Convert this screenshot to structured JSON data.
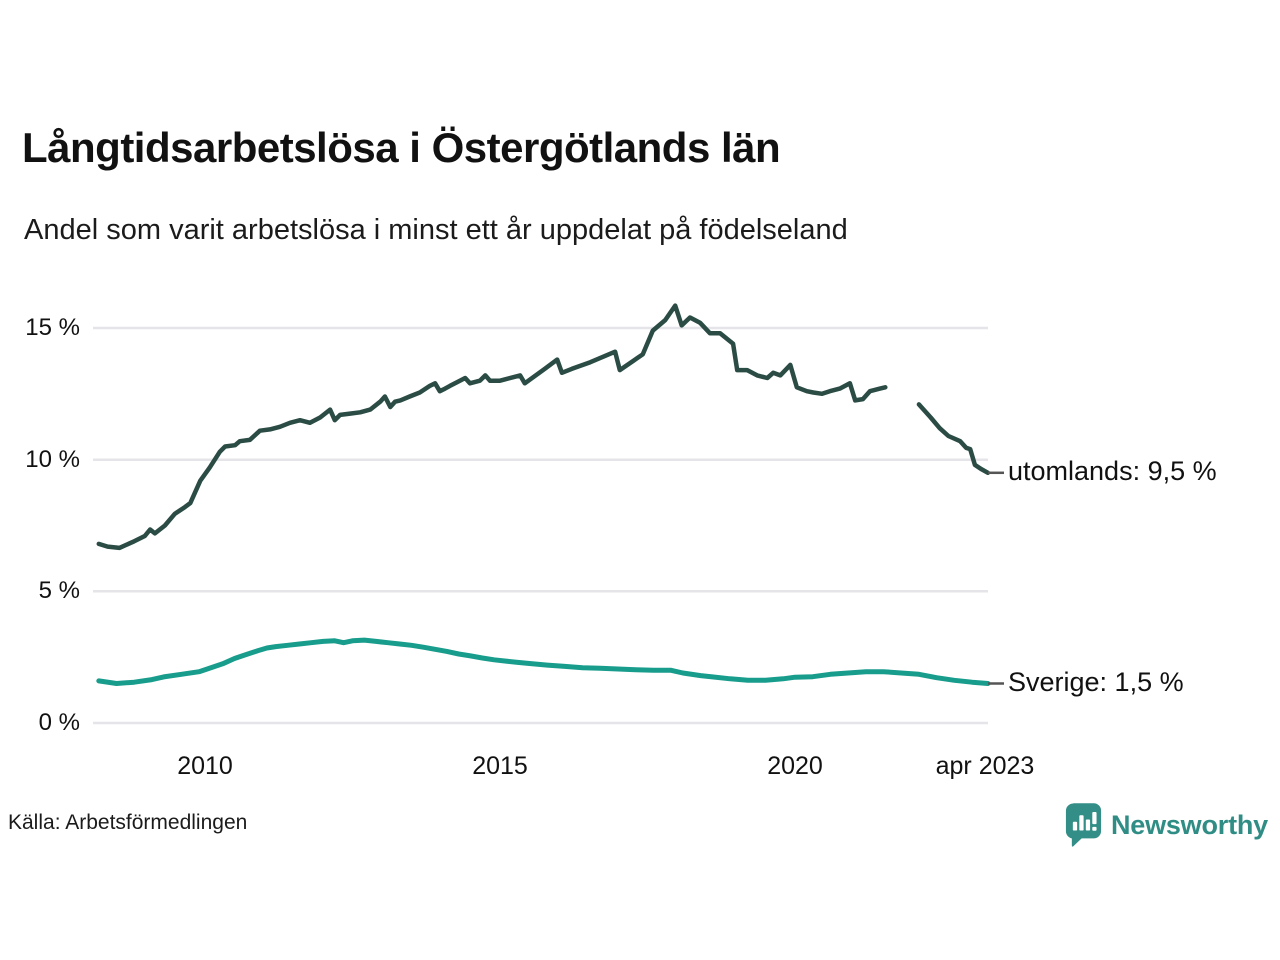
{
  "chart": {
    "title": "Långtidsarbetslösa i Östergötlands län",
    "subtitle": "Andel som varit arbetslösa i minst ett år uppdelat på födelseland",
    "source": "Källa: Arbetsförmedlingen",
    "brand": {
      "name": "Newsworthy",
      "color": "#2f8d86",
      "icon": "speech-bubble-bar-chart"
    }
  },
  "chart_data": {
    "type": "line",
    "title": "Långtidsarbetslösa i Östergötlands län",
    "subtitle": "Andel som varit arbetslösa i minst ett år uppdelat på födelseland",
    "xlabel": "",
    "ylabel": "",
    "x_unit": "decimal-year",
    "xlim": [
      2008.1,
      2023.35
    ],
    "ylim": [
      0,
      16
    ],
    "grid": "horizontal",
    "grid_color": "#e4e4e9",
    "axis_label_color": "#111111",
    "end_tick_color": "#555555",
    "legend_position": "right-end-labels",
    "y_ticks": [
      {
        "v": 0,
        "label": "0 %"
      },
      {
        "v": 5,
        "label": "5 %"
      },
      {
        "v": 10,
        "label": "10 %"
      },
      {
        "v": 15,
        "label": "15 %"
      }
    ],
    "x_ticks": [
      {
        "v": 2010,
        "label": "2010"
      },
      {
        "v": 2015,
        "label": "2015"
      },
      {
        "v": 2020,
        "label": "2020"
      },
      {
        "v": 2023.22,
        "label": "apr 2023"
      }
    ],
    "series": [
      {
        "name": "utomlands",
        "end_label": "utomlands: 9,5 %",
        "final_value": 9.5,
        "color": "#2b4c44",
        "width": 4.5,
        "segments": [
          [
            [
              2008.2,
              6.8
            ],
            [
              2008.35,
              6.7
            ],
            [
              2008.55,
              6.65
            ],
            [
              2008.8,
              6.9
            ],
            [
              2008.98,
              7.1
            ],
            [
              2009.07,
              7.35
            ],
            [
              2009.15,
              7.2
            ],
            [
              2009.32,
              7.5
            ],
            [
              2009.49,
              7.95
            ],
            [
              2009.66,
              8.2
            ],
            [
              2009.75,
              8.35
            ],
            [
              2009.92,
              9.2
            ],
            [
              2010.08,
              9.7
            ],
            [
              2010.25,
              10.3
            ],
            [
              2010.34,
              10.5
            ],
            [
              2010.51,
              10.55
            ],
            [
              2010.59,
              10.7
            ],
            [
              2010.76,
              10.75
            ],
            [
              2010.93,
              11.1
            ],
            [
              2011.1,
              11.15
            ],
            [
              2011.27,
              11.25
            ],
            [
              2011.44,
              11.4
            ],
            [
              2011.61,
              11.5
            ],
            [
              2011.78,
              11.4
            ],
            [
              2011.95,
              11.6
            ],
            [
              2012.12,
              11.9
            ],
            [
              2012.2,
              11.5
            ],
            [
              2012.29,
              11.7
            ],
            [
              2012.46,
              11.75
            ],
            [
              2012.63,
              11.8
            ],
            [
              2012.8,
              11.9
            ],
            [
              2012.97,
              12.2
            ],
            [
              2013.05,
              12.4
            ],
            [
              2013.14,
              12.0
            ],
            [
              2013.22,
              12.2
            ],
            [
              2013.31,
              12.25
            ],
            [
              2013.47,
              12.4
            ],
            [
              2013.64,
              12.55
            ],
            [
              2013.81,
              12.8
            ],
            [
              2013.9,
              12.9
            ],
            [
              2013.98,
              12.6
            ],
            [
              2014.07,
              12.7
            ],
            [
              2014.15,
              12.8
            ],
            [
              2014.32,
              13.0
            ],
            [
              2014.41,
              13.1
            ],
            [
              2014.49,
              12.9
            ],
            [
              2014.66,
              13.0
            ],
            [
              2014.75,
              13.2
            ],
            [
              2014.83,
              13.0
            ],
            [
              2015.0,
              13.0
            ],
            [
              2015.34,
              13.2
            ],
            [
              2015.42,
              12.9
            ],
            [
              2015.76,
              13.45
            ],
            [
              2015.97,
              13.8
            ],
            [
              2016.05,
              13.3
            ],
            [
              2016.22,
              13.45
            ],
            [
              2016.53,
              13.7
            ],
            [
              2016.95,
              14.1
            ],
            [
              2017.03,
              13.4
            ],
            [
              2017.42,
              14.0
            ],
            [
              2017.59,
              14.9
            ],
            [
              2017.8,
              15.3
            ],
            [
              2017.97,
              15.85
            ],
            [
              2018.08,
              15.1
            ],
            [
              2018.22,
              15.4
            ],
            [
              2018.39,
              15.2
            ],
            [
              2018.56,
              14.8
            ],
            [
              2018.73,
              14.8
            ],
            [
              2018.95,
              14.4
            ],
            [
              2019.02,
              13.4
            ],
            [
              2019.19,
              13.4
            ],
            [
              2019.36,
              13.2
            ],
            [
              2019.53,
              13.1
            ],
            [
              2019.63,
              13.3
            ],
            [
              2019.75,
              13.2
            ],
            [
              2019.92,
              13.6
            ],
            [
              2020.03,
              12.75
            ],
            [
              2020.2,
              12.6
            ],
            [
              2020.31,
              12.55
            ],
            [
              2020.46,
              12.5
            ],
            [
              2020.59,
              12.6
            ],
            [
              2020.76,
              12.7
            ],
            [
              2020.93,
              12.9
            ],
            [
              2021.02,
              12.25
            ],
            [
              2021.15,
              12.3
            ],
            [
              2021.27,
              12.6
            ],
            [
              2021.44,
              12.7
            ],
            [
              2021.53,
              12.75
            ]
          ],
          [
            [
              2022.1,
              12.1
            ],
            [
              2022.3,
              11.6
            ],
            [
              2022.45,
              11.2
            ],
            [
              2022.6,
              10.9
            ],
            [
              2022.8,
              10.7
            ],
            [
              2022.9,
              10.45
            ],
            [
              2022.97,
              10.4
            ],
            [
              2023.05,
              9.8
            ],
            [
              2023.15,
              9.65
            ],
            [
              2023.27,
              9.5
            ]
          ]
        ]
      },
      {
        "name": "Sverige",
        "end_label": "Sverige: 1,5 %",
        "final_value": 1.5,
        "color": "#189c8c",
        "width": 5,
        "segments": [
          [
            [
              2008.2,
              1.6
            ],
            [
              2008.5,
              1.5
            ],
            [
              2008.8,
              1.55
            ],
            [
              2009.1,
              1.65
            ],
            [
              2009.3,
              1.75
            ],
            [
              2009.6,
              1.85
            ],
            [
              2009.9,
              1.95
            ],
            [
              2010.1,
              2.1
            ],
            [
              2010.3,
              2.25
            ],
            [
              2010.5,
              2.45
            ],
            [
              2010.7,
              2.6
            ],
            [
              2010.9,
              2.75
            ],
            [
              2011.05,
              2.85
            ],
            [
              2011.2,
              2.9
            ],
            [
              2011.4,
              2.95
            ],
            [
              2011.6,
              3.0
            ],
            [
              2011.8,
              3.05
            ],
            [
              2012.0,
              3.1
            ],
            [
              2012.2,
              3.12
            ],
            [
              2012.35,
              3.05
            ],
            [
              2012.5,
              3.12
            ],
            [
              2012.7,
              3.15
            ],
            [
              2012.9,
              3.1
            ],
            [
              2013.1,
              3.05
            ],
            [
              2013.3,
              3.0
            ],
            [
              2013.5,
              2.95
            ],
            [
              2013.7,
              2.88
            ],
            [
              2013.9,
              2.8
            ],
            [
              2014.1,
              2.72
            ],
            [
              2014.3,
              2.62
            ],
            [
              2014.5,
              2.55
            ],
            [
              2014.7,
              2.47
            ],
            [
              2014.9,
              2.4
            ],
            [
              2015.1,
              2.35
            ],
            [
              2015.3,
              2.3
            ],
            [
              2015.5,
              2.26
            ],
            [
              2015.8,
              2.2
            ],
            [
              2016.1,
              2.15
            ],
            [
              2016.4,
              2.1
            ],
            [
              2016.7,
              2.08
            ],
            [
              2017.0,
              2.05
            ],
            [
              2017.3,
              2.02
            ],
            [
              2017.6,
              2.0
            ],
            [
              2017.9,
              2.0
            ],
            [
              2018.1,
              1.9
            ],
            [
              2018.4,
              1.8
            ],
            [
              2018.6,
              1.75
            ],
            [
              2018.9,
              1.68
            ],
            [
              2019.2,
              1.62
            ],
            [
              2019.5,
              1.62
            ],
            [
              2019.8,
              1.68
            ],
            [
              2020.0,
              1.74
            ],
            [
              2020.3,
              1.76
            ],
            [
              2020.6,
              1.85
            ],
            [
              2020.9,
              1.9
            ],
            [
              2021.2,
              1.95
            ],
            [
              2021.5,
              1.95
            ],
            [
              2021.8,
              1.9
            ],
            [
              2022.1,
              1.85
            ],
            [
              2022.4,
              1.72
            ],
            [
              2022.7,
              1.62
            ],
            [
              2023.0,
              1.55
            ],
            [
              2023.27,
              1.5
            ]
          ]
        ]
      }
    ]
  }
}
